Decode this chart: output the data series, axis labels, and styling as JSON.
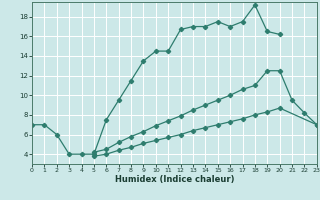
{
  "xlabel": "Humidex (Indice chaleur)",
  "bg_color": "#cce8e8",
  "grid_color": "#ffffff",
  "line_color": "#2e7d6e",
  "xlim": [
    0,
    23
  ],
  "ylim": [
    3,
    19.5
  ],
  "xticks": [
    0,
    1,
    2,
    3,
    4,
    5,
    6,
    7,
    8,
    9,
    10,
    11,
    12,
    13,
    14,
    15,
    16,
    17,
    18,
    19,
    20,
    21,
    22,
    23
  ],
  "yticks": [
    4,
    6,
    8,
    10,
    12,
    14,
    16,
    18
  ],
  "series": [
    {
      "x": [
        0,
        1,
        2,
        3,
        4,
        5,
        6,
        7,
        8,
        9,
        10,
        11,
        12,
        13,
        14,
        15,
        16,
        17,
        18,
        19,
        20
      ],
      "y": [
        7,
        7,
        6,
        4,
        4,
        4,
        7.5,
        9.5,
        11.5,
        13.5,
        14.5,
        14.5,
        16.7,
        17.0,
        17.0,
        17.5,
        17.0,
        17.5,
        19.2,
        16.5,
        16.2
      ]
    },
    {
      "x": [
        5,
        6,
        7,
        8,
        9,
        10,
        11,
        12,
        13,
        14,
        15,
        16,
        17,
        18,
        19,
        20,
        21,
        22,
        23
      ],
      "y": [
        4.2,
        4.5,
        5.2,
        5.8,
        6.3,
        6.9,
        7.4,
        7.9,
        8.5,
        9.0,
        9.5,
        10.0,
        10.6,
        11.0,
        12.5,
        12.5,
        9.5,
        8.2,
        7.0
      ]
    },
    {
      "x": [
        5,
        6,
        7,
        8,
        9,
        10,
        11,
        12,
        13,
        14,
        15,
        16,
        17,
        18,
        19,
        20,
        23
      ],
      "y": [
        3.8,
        4.0,
        4.4,
        4.7,
        5.1,
        5.4,
        5.7,
        6.0,
        6.4,
        6.7,
        7.0,
        7.3,
        7.6,
        8.0,
        8.3,
        8.7,
        7.0
      ]
    }
  ]
}
